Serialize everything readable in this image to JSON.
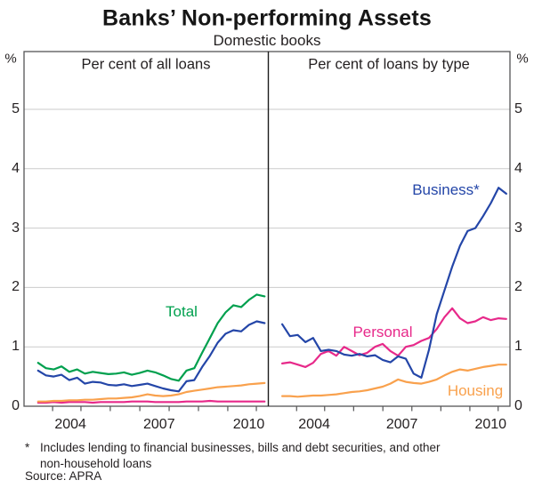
{
  "title": "Banks’ Non-performing Assets",
  "subtitle": "Domestic books",
  "y_axis": {
    "unit_label": "%",
    "tick_labels": [
      "5",
      "4",
      "3",
      "2",
      "1",
      "0"
    ],
    "tick_values": [
      5,
      4,
      3,
      2,
      1,
      0
    ],
    "ylim": [
      0,
      6
    ],
    "gridlines": [
      1,
      2,
      3,
      4,
      5
    ]
  },
  "footnote": {
    "star": "*",
    "line1": "Includes lending to financial businesses, bills and debt securities, and other",
    "line2": "non-household loans",
    "source": "Source: APRA"
  },
  "chart_data": [
    {
      "type": "line",
      "panel": "left",
      "title": "Per cent of all loans",
      "x_tick_labels": [
        "2004",
        "2007",
        "2010"
      ],
      "x": [
        2003.75,
        2004.0,
        2004.25,
        2004.5,
        2004.75,
        2005.0,
        2005.25,
        2005.5,
        2005.75,
        2006.0,
        2006.25,
        2006.5,
        2006.75,
        2007.0,
        2007.25,
        2007.5,
        2007.75,
        2008.0,
        2008.25,
        2008.5,
        2008.75,
        2009.0,
        2009.25,
        2009.5,
        2009.75,
        2010.0,
        2010.25,
        2010.5,
        2010.75,
        2011.0
      ],
      "ylim": [
        0,
        6
      ],
      "series": [
        {
          "label": "",
          "id": "unlabelled-pink",
          "color": "#e7298a",
          "values": [
            0.06,
            0.06,
            0.07,
            0.06,
            0.07,
            0.07,
            0.07,
            0.06,
            0.07,
            0.07,
            0.07,
            0.07,
            0.08,
            0.08,
            0.08,
            0.07,
            0.07,
            0.07,
            0.07,
            0.08,
            0.08,
            0.08,
            0.09,
            0.08,
            0.08,
            0.08,
            0.08,
            0.08,
            0.08,
            0.08
          ]
        },
        {
          "label": "",
          "id": "unlabelled-orange",
          "color": "#f9a14d",
          "values": [
            0.08,
            0.08,
            0.09,
            0.09,
            0.1,
            0.1,
            0.11,
            0.11,
            0.12,
            0.13,
            0.13,
            0.14,
            0.15,
            0.17,
            0.2,
            0.18,
            0.17,
            0.18,
            0.2,
            0.24,
            0.26,
            0.28,
            0.3,
            0.32,
            0.33,
            0.34,
            0.35,
            0.37,
            0.38,
            0.39
          ]
        },
        {
          "label": "",
          "id": "unlabelled-blue",
          "color": "#2446a8",
          "values": [
            0.6,
            0.52,
            0.5,
            0.53,
            0.44,
            0.48,
            0.38,
            0.41,
            0.4,
            0.36,
            0.35,
            0.37,
            0.34,
            0.36,
            0.38,
            0.34,
            0.3,
            0.27,
            0.25,
            0.42,
            0.44,
            0.66,
            0.85,
            1.07,
            1.22,
            1.28,
            1.26,
            1.37,
            1.43,
            1.4
          ]
        },
        {
          "label": "Total",
          "id": "total",
          "color": "#00a04e",
          "values": [
            0.73,
            0.64,
            0.62,
            0.67,
            0.58,
            0.62,
            0.55,
            0.58,
            0.56,
            0.54,
            0.55,
            0.57,
            0.53,
            0.56,
            0.6,
            0.57,
            0.52,
            0.46,
            0.43,
            0.6,
            0.64,
            0.9,
            1.15,
            1.4,
            1.58,
            1.7,
            1.67,
            1.79,
            1.88,
            1.85
          ]
        }
      ]
    },
    {
      "type": "line",
      "panel": "right",
      "title": "Per cent of loans by type",
      "x_tick_labels": [
        "2004",
        "2007",
        "2010"
      ],
      "x": [
        2003.75,
        2004.0,
        2004.25,
        2004.5,
        2004.75,
        2005.0,
        2005.25,
        2005.5,
        2005.75,
        2006.0,
        2006.25,
        2006.5,
        2006.75,
        2007.0,
        2007.25,
        2007.5,
        2007.75,
        2008.0,
        2008.25,
        2008.5,
        2008.75,
        2009.0,
        2009.25,
        2009.5,
        2009.75,
        2010.0,
        2010.25,
        2010.5,
        2010.75,
        2011.0
      ],
      "ylim": [
        0,
        6
      ],
      "series": [
        {
          "label": "Housing",
          "id": "housing",
          "color": "#f9a14d",
          "values": [
            0.17,
            0.17,
            0.16,
            0.17,
            0.18,
            0.18,
            0.19,
            0.2,
            0.22,
            0.24,
            0.25,
            0.27,
            0.3,
            0.33,
            0.38,
            0.45,
            0.41,
            0.39,
            0.38,
            0.41,
            0.45,
            0.52,
            0.58,
            0.62,
            0.6,
            0.63,
            0.66,
            0.68,
            0.7,
            0.7
          ]
        },
        {
          "label": "Personal",
          "id": "personal",
          "color": "#e7298a",
          "values": [
            0.72,
            0.74,
            0.7,
            0.66,
            0.73,
            0.88,
            0.93,
            0.85,
            1.0,
            0.93,
            0.86,
            0.9,
            1.0,
            1.05,
            0.93,
            0.85,
            1.0,
            1.03,
            1.1,
            1.15,
            1.3,
            1.5,
            1.65,
            1.48,
            1.4,
            1.43,
            1.5,
            1.45,
            1.48,
            1.47
          ]
        },
        {
          "label": "Business*",
          "id": "business",
          "color": "#2446a8",
          "values": [
            1.38,
            1.18,
            1.2,
            1.08,
            1.15,
            0.93,
            0.95,
            0.93,
            0.87,
            0.85,
            0.88,
            0.84,
            0.86,
            0.78,
            0.74,
            0.84,
            0.8,
            0.55,
            0.48,
            0.95,
            1.55,
            1.95,
            2.35,
            2.7,
            2.95,
            3.0,
            3.2,
            3.42,
            3.68,
            3.58
          ]
        }
      ]
    }
  ]
}
